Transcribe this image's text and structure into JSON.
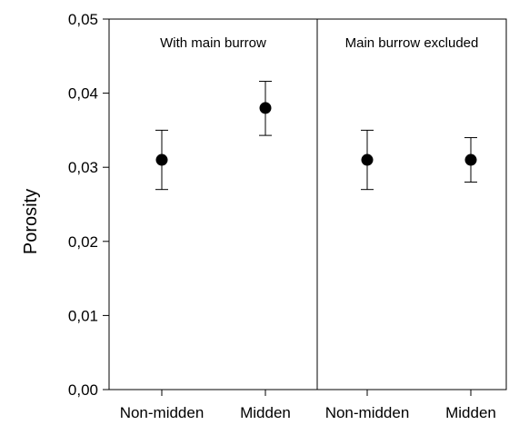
{
  "chart_data": {
    "type": "scatter",
    "ylabel": "Porosity",
    "ylim": [
      0,
      0.05
    ],
    "yticks": [
      "0,00",
      "0,01",
      "0,02",
      "0,03",
      "0,04",
      "0,05"
    ],
    "grid": false,
    "panels": [
      {
        "title": "With main burrow",
        "categories": [
          "Non-midden",
          "Midden"
        ],
        "values": [
          0.031,
          0.038
        ],
        "error_low": [
          0.027,
          0.0343
        ],
        "error_high": [
          0.035,
          0.0416
        ]
      },
      {
        "title": "Main burrow excluded",
        "categories": [
          "Non-midden",
          "Midden"
        ],
        "values": [
          0.031,
          0.031
        ],
        "error_low": [
          0.027,
          0.028
        ],
        "error_high": [
          0.035,
          0.034
        ]
      }
    ]
  }
}
